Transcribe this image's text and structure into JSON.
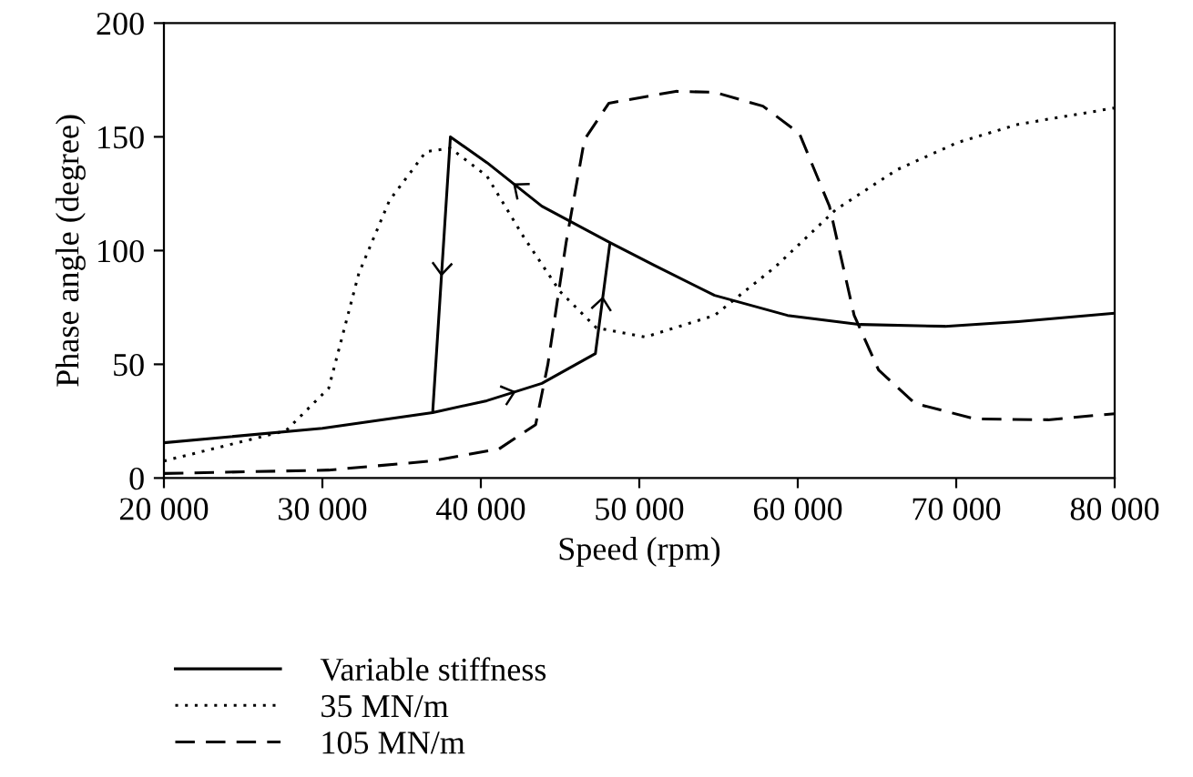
{
  "chart_data": {
    "type": "line",
    "xlabel": "Speed (rpm)",
    "ylabel": "Phase angle (degree)",
    "xlim": [
      20000,
      80000
    ],
    "ylim": [
      0,
      200
    ],
    "xticks": [
      {
        "value": 20000,
        "label": "20 000"
      },
      {
        "value": 30000,
        "label": "30 000"
      },
      {
        "value": 40000,
        "label": "40 000"
      },
      {
        "value": 50000,
        "label": "50 000"
      },
      {
        "value": 60000,
        "label": "60 000"
      },
      {
        "value": 70000,
        "label": "70 000"
      },
      {
        "value": 80000,
        "label": "80 000"
      }
    ],
    "yticks": [
      0,
      50,
      100,
      150,
      200
    ],
    "grid": false,
    "legend": "bottom",
    "series": [
      {
        "name": "Variable stiffness",
        "color": "#000000",
        "line_style": "solid",
        "x": [
          20000,
          30000,
          36960,
          40380,
          43850,
          47230,
          48150,
          50920,
          54750,
          59350,
          63950,
          69300,
          73900,
          80000,
          null,
          48150,
          43850,
          40380,
          38080,
          36960
        ],
        "values": [
          15.5,
          21.9,
          28.8,
          34,
          41.6,
          54.7,
          103.5,
          93.6,
          80.3,
          71.5,
          67.5,
          66.7,
          68.8,
          72.5,
          null,
          103.5,
          119.5,
          138.7,
          150,
          28.8
        ]
      },
      {
        "name": "35 MN/m",
        "color": "#000000",
        "line_style": "dotted",
        "x": [
          20000,
          27700,
          30400,
          32300,
          34230,
          36540,
          38080,
          40380,
          42700,
          45000,
          47300,
          50380,
          54750,
          58580,
          62400,
          66250,
          70080,
          73900,
          80000
        ],
        "values": [
          7.5,
          20.8,
          39.5,
          90,
          122,
          143.5,
          145,
          132.8,
          106,
          82,
          66,
          62,
          71.5,
          92.8,
          118,
          135.5,
          147.5,
          155.5,
          162.7
        ]
      },
      {
        "name": "105 MN/m",
        "color": "#000000",
        "line_style": "dashed",
        "x": [
          20000,
          30400,
          36900,
          41150,
          43460,
          44230,
          45380,
          46540,
          48080,
          52300,
          54750,
          57800,
          60100,
          62000,
          63560,
          65100,
          67400,
          71200,
          75800,
          80000
        ],
        "values": [
          2,
          3.5,
          7.5,
          12.8,
          23.5,
          50,
          103.5,
          148.8,
          164.8,
          170,
          169.6,
          163.5,
          151.5,
          119.5,
          71.5,
          47.5,
          32.8,
          26,
          25.6,
          28.3
        ]
      }
    ]
  }
}
